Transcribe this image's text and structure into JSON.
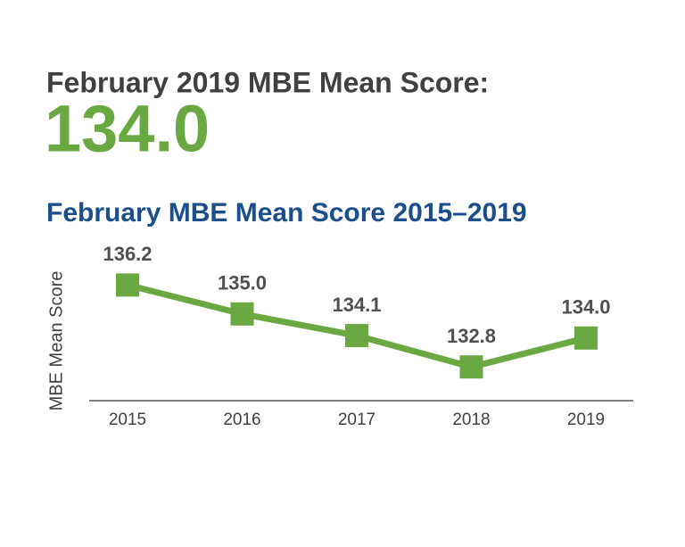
{
  "chart_data": {
    "type": "line",
    "headline": "February 2019 MBE Mean Score:",
    "headline_value": "134.0",
    "title": "February MBE Mean Score 2015–2019",
    "y_label": "MBE Mean Score",
    "categories": [
      "2015",
      "2016",
      "2017",
      "2018",
      "2019"
    ],
    "values": [
      136.2,
      135.0,
      134.1,
      132.8,
      134.0
    ],
    "value_labels": [
      "136.2",
      "135.0",
      "134.1",
      "132.8",
      "134.0"
    ],
    "color": "#6aa842",
    "ylim": [
      131.4,
      137.4
    ],
    "grid": false
  }
}
